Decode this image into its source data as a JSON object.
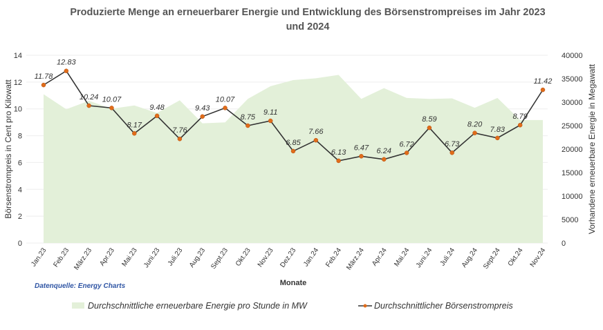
{
  "chart_data": {
    "type": "line",
    "title": "Produzierte Menge an erneuerbarer Energie und Entwicklung des Börsenstrompreises im Jahr 2023 und 2024",
    "title_lines": [
      "Produzierte Menge an erneuerbarer Energie und Entwicklung des Börsenstrompreises im Jahr 2023",
      "und 2024"
    ],
    "xlabel": "Monate",
    "ylabel": "Börsenstrompreis in Cent pro Kilowatt",
    "y2label": "Vorhandene erneuerbare Energie in Megawatt",
    "ylim": [
      0,
      14
    ],
    "yticks": [
      0,
      2,
      4,
      6,
      8,
      10,
      12,
      14
    ],
    "y2lim": [
      0,
      40000
    ],
    "y2ticks": [
      0,
      5000,
      10000,
      15000,
      20000,
      25000,
      30000,
      35000,
      40000
    ],
    "grid": true,
    "legend_position": "bottom",
    "source_note": "Datenquelle: Energy Charts",
    "categories": [
      "Jan.23",
      "Feb.23",
      "März.23",
      "Apr.23",
      "Mai.23",
      "Juni.23",
      "Juli.23",
      "Aug.23",
      "Sept.23",
      "Okt.23",
      "Nov.23",
      "Dez.23",
      "Jan.24",
      "Feb.24",
      "März.24",
      "Apr.24",
      "Mai.24",
      "Juni.24",
      "Juli.24",
      "Aug.24",
      "Sept.24",
      "Okt.24",
      "Nov.24"
    ],
    "series": [
      {
        "name": "Durchschnittliche erneuerbare Energie pro Stunde in MW",
        "type": "area",
        "axis": "right",
        "color": "#e3f0d9",
        "values": [
          31700,
          28500,
          30300,
          28600,
          29300,
          27700,
          30400,
          25500,
          25700,
          30700,
          33400,
          34700,
          35100,
          35800,
          30700,
          33000,
          30900,
          30700,
          30800,
          28800,
          30900,
          26200,
          26200
        ]
      },
      {
        "name": "Durchschnittlicher Börsenstrompreis",
        "type": "line",
        "axis": "left",
        "color": "#333333",
        "marker_color": "#e06c1a",
        "values": [
          11.78,
          12.83,
          10.24,
          10.07,
          8.17,
          9.48,
          7.76,
          9.43,
          10.07,
          8.75,
          9.11,
          6.85,
          7.66,
          6.13,
          6.47,
          6.24,
          6.72,
          8.59,
          6.73,
          8.2,
          7.83,
          8.79,
          11.42
        ],
        "labels": [
          "11.78",
          "12.83",
          "10.24",
          "10.07",
          "8.17",
          "9.48",
          "7.76",
          "9.43",
          "10.07",
          "8.75",
          "9.11",
          "6.85",
          "7.66",
          "6.13",
          "6.47",
          "6.24",
          "6.72",
          "8.59",
          "6.73",
          "8.20",
          "7.83",
          "8.79",
          "11.42"
        ]
      }
    ]
  }
}
